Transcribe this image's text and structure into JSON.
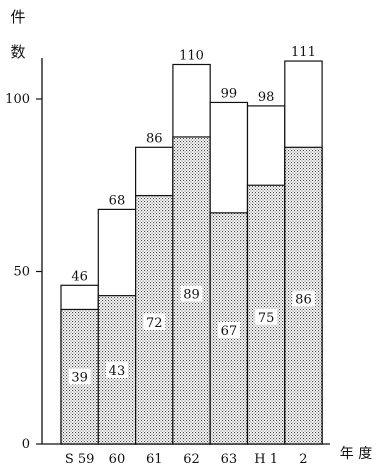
{
  "chart_data": {
    "type": "bar",
    "stacked": true,
    "categories": [
      "S 59",
      "60",
      "61",
      "62",
      "63",
      "H 1",
      "2"
    ],
    "totals": [
      46,
      68,
      86,
      110,
      99,
      98,
      111
    ],
    "series": [
      {
        "values": [
          39,
          43,
          72,
          89,
          67,
          75,
          86
        ],
        "style": "dotted"
      },
      {
        "values": [
          7,
          25,
          14,
          21,
          32,
          23,
          25
        ],
        "style": "white"
      }
    ],
    "ylabel_lines": [
      "件",
      "数"
    ],
    "xlabel": "年 度",
    "yticks": [
      "100",
      "50",
      "0"
    ],
    "ylim": [
      0,
      118
    ],
    "grid": false
  }
}
